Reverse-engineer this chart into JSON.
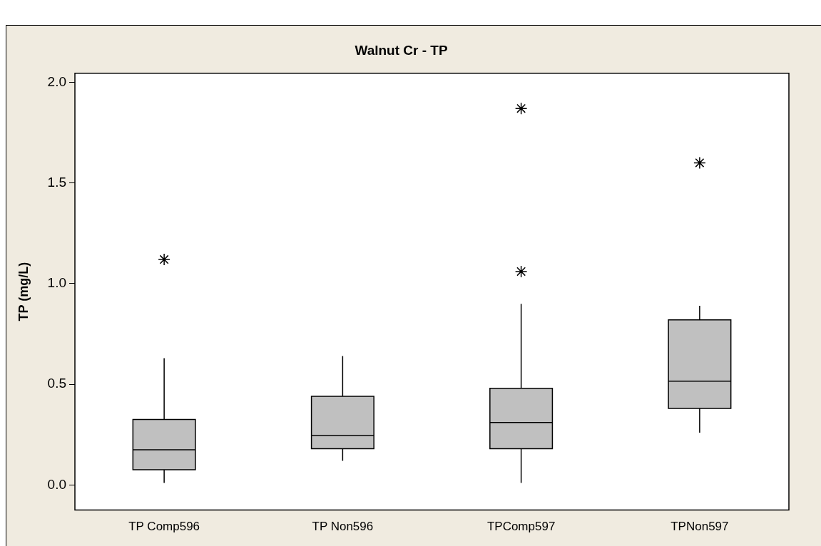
{
  "chart_data": {
    "type": "box",
    "title": "Walnut Cr - TP",
    "ylabel": "TP (mg/L)",
    "categories": [
      "TP Comp596",
      "TP Non596",
      "TPComp597",
      "TPNon597"
    ],
    "color": "#c0c0c0",
    "marker": "star",
    "grid": false,
    "legend": false,
    "boxes": [
      {
        "low": 0.01,
        "q1": 0.075,
        "median": 0.175,
        "q3": 0.325,
        "high": 0.63,
        "outliers": [
          1.12
        ]
      },
      {
        "low": 0.12,
        "q1": 0.18,
        "median": 0.245,
        "q3": 0.44,
        "high": 0.64
      },
      {
        "low": 0.01,
        "q1": 0.18,
        "median": 0.31,
        "q3": 0.48,
        "high": 0.9,
        "outliers": [
          1.06,
          1.87
        ]
      },
      {
        "low": 0.26,
        "q1": 0.38,
        "median": 0.515,
        "q3": 0.82,
        "high": 0.89,
        "outliers": [
          1.6
        ]
      }
    ],
    "ylim": [
      -0.125,
      2.045
    ],
    "yticks": [
      {
        "value": 0,
        "label": "0.0"
      },
      {
        "value": 0.5,
        "label": "0.5"
      },
      {
        "value": 1,
        "label": "1.0"
      },
      {
        "value": 1.5,
        "label": "1.5"
      },
      {
        "value": 2,
        "label": "2.0"
      }
    ]
  }
}
